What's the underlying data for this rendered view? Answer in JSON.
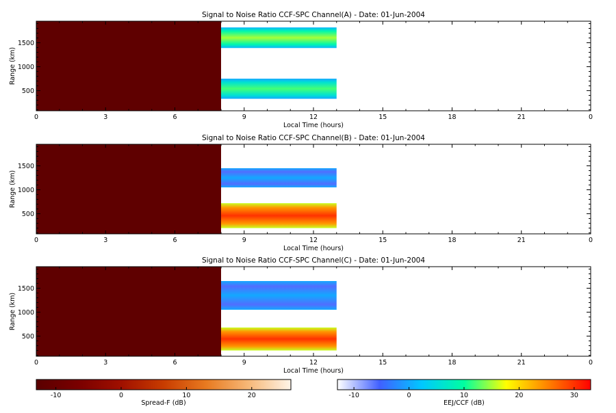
{
  "chart_data": [
    {
      "type": "heatmap",
      "title": "Signal to Noise Ratio CCF-SPC Channel(A) - Date: 01-Jun-2004",
      "xlabel": "Local Time (hours)",
      "ylabel": "Range (km)",
      "x_ticks": [
        "0",
        "3",
        "6",
        "9",
        "12",
        "15",
        "18",
        "21",
        "0"
      ],
      "y_ticks": [
        500,
        1000,
        1500
      ],
      "xlim": [
        0,
        24
      ],
      "ylim": [
        80,
        1950
      ],
      "regions": [
        {
          "scale": "spread-f",
          "t0": 0,
          "t1": 8,
          "r0": 80,
          "r1": 1950,
          "db": -12
        },
        {
          "scale": "eej-ccf",
          "t0": 8,
          "t1": 13,
          "r0": 1390,
          "r1": 1820,
          "db": 15
        },
        {
          "scale": "eej-ccf",
          "t0": 8,
          "t1": 13,
          "r0": 330,
          "r1": 750,
          "db": 12
        }
      ]
    },
    {
      "type": "heatmap",
      "title": "Signal to Noise Ratio CCF-SPC Channel(B) - Date: 01-Jun-2004",
      "xlabel": "Local Time (hours)",
      "ylabel": "Range (km)",
      "x_ticks": [
        "0",
        "3",
        "6",
        "9",
        "12",
        "15",
        "18",
        "21",
        "0"
      ],
      "y_ticks": [
        500,
        1000,
        1500
      ],
      "xlim": [
        0,
        24
      ],
      "ylim": [
        80,
        1950
      ],
      "regions": [
        {
          "scale": "spread-f",
          "t0": 0,
          "t1": 8,
          "r0": 80,
          "r1": 1950,
          "db": -12
        },
        {
          "scale": "eej-ccf",
          "t0": 8,
          "t1": 13,
          "r0": 1050,
          "r1": 1450,
          "db": 0
        },
        {
          "scale": "eej-ccf",
          "t0": 8,
          "t1": 13,
          "r0": 200,
          "r1": 720,
          "db": 30
        }
      ]
    },
    {
      "type": "heatmap",
      "title": "Signal to Noise Ratio CCF-SPC Channel(C) - Date: 01-Jun-2004",
      "xlabel": "Local Time (hours)",
      "ylabel": "Range (km)",
      "x_ticks": [
        "0",
        "3",
        "6",
        "9",
        "12",
        "15",
        "18",
        "21",
        "0"
      ],
      "y_ticks": [
        500,
        1000,
        1500
      ],
      "xlim": [
        0,
        24
      ],
      "ylim": [
        80,
        1950
      ],
      "regions": [
        {
          "scale": "spread-f",
          "t0": 0,
          "t1": 8,
          "r0": 80,
          "r1": 1950,
          "db": -12
        },
        {
          "scale": "eej-ccf",
          "t0": 8,
          "t1": 13,
          "r0": 1050,
          "r1": 1650,
          "db": 0
        },
        {
          "scale": "eej-ccf",
          "t0": 8,
          "t1": 13,
          "r0": 200,
          "r1": 680,
          "db": 30
        }
      ]
    }
  ],
  "colorbars": [
    {
      "label": "Spread-F (dB)",
      "range": [
        -13,
        26
      ],
      "ticks": [
        -10,
        0,
        10,
        20
      ],
      "colors": [
        "#5a0000",
        "#7a0000",
        "#a01000",
        "#c83c00",
        "#e87a20",
        "#f6b878",
        "#fff4e8"
      ]
    },
    {
      "label": "EEJ/CCF (dB)",
      "range": [
        -13,
        33
      ],
      "ticks": [
        -10,
        0,
        10,
        20,
        30
      ],
      "colors": [
        "#ffffff",
        "#4060ff",
        "#00c8ff",
        "#00ffa0",
        "#ffff00",
        "#ff8000",
        "#ff0000"
      ]
    }
  ]
}
